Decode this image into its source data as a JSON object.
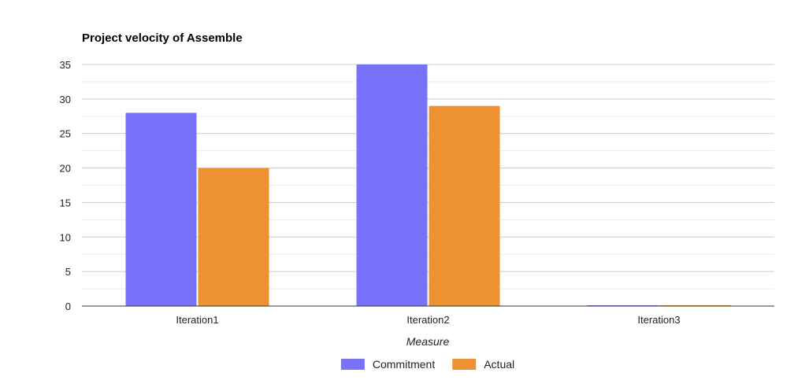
{
  "chart_data": {
    "type": "bar",
    "title": "Project velocity of Assemble",
    "xlabel": "Measure",
    "ylabel": "",
    "categories": [
      "Iteration1",
      "Iteration2",
      "Iteration3"
    ],
    "series": [
      {
        "name": "Commitment",
        "values": [
          28,
          35,
          0
        ],
        "color": "#7872fb"
      },
      {
        "name": "Actual",
        "values": [
          20,
          29,
          0
        ],
        "color": "#ec9232"
      }
    ],
    "ylim": [
      0,
      35
    ],
    "yticks": [
      0,
      5,
      10,
      15,
      20,
      25,
      30,
      35
    ],
    "grid": true,
    "minor_grid": true,
    "legend_position": "bottom"
  }
}
